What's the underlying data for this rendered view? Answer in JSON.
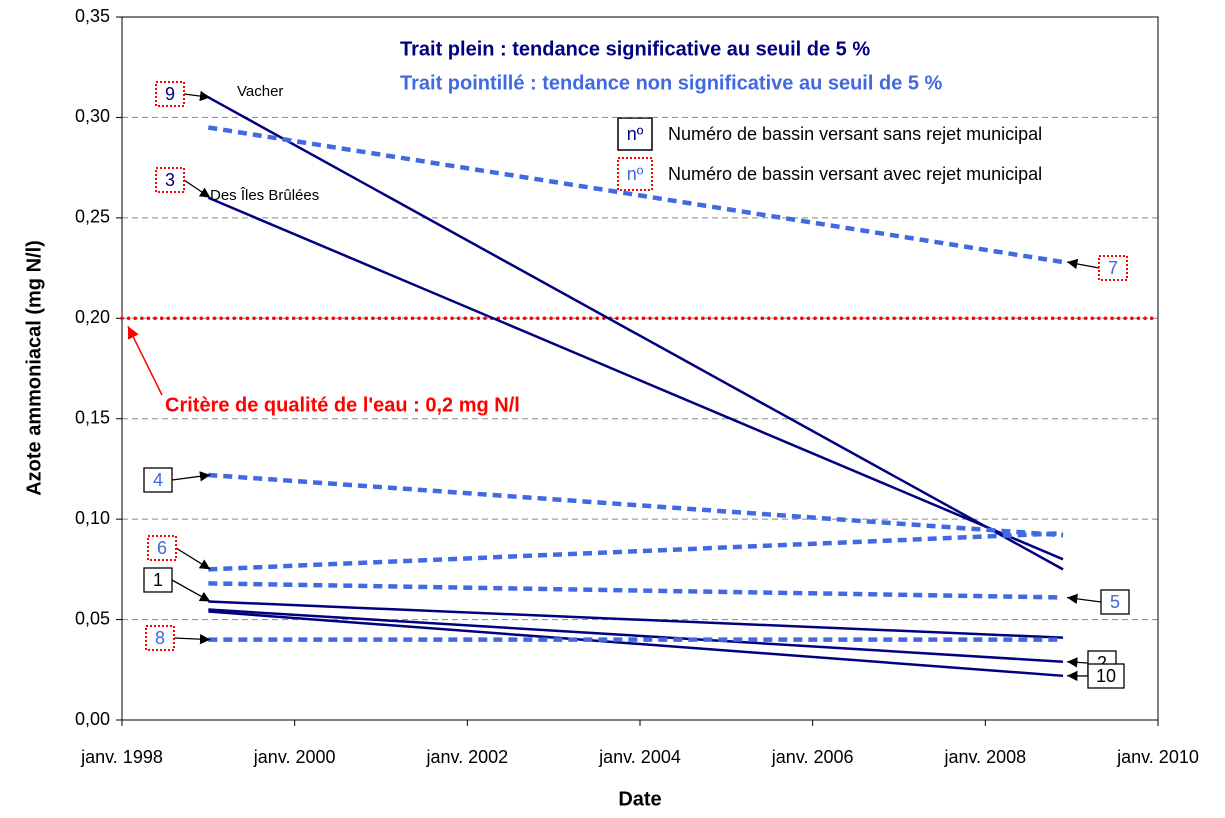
{
  "chart_data": {
    "type": "line",
    "y_label": "Azote ammoniacal (mg N/l)",
    "x_label": "Date",
    "xlim": [
      1998,
      2010
    ],
    "xticks": [
      {
        "value": 1998,
        "label": "janv. 1998"
      },
      {
        "value": 2000,
        "label": "janv. 2000"
      },
      {
        "value": 2002,
        "label": "janv. 2002"
      },
      {
        "value": 2004,
        "label": "janv. 2004"
      },
      {
        "value": 2006,
        "label": "janv. 2006"
      },
      {
        "value": 2008,
        "label": "janv. 2008"
      },
      {
        "value": 2010,
        "label": "janv. 2010"
      }
    ],
    "ylim": [
      0,
      0.35
    ],
    "yticks": [
      {
        "value": 0,
        "label": "0,00"
      },
      {
        "value": 0.05,
        "label": "0,05"
      },
      {
        "value": 0.1,
        "label": "0,10"
      },
      {
        "value": 0.15,
        "label": "0,15"
      },
      {
        "value": 0.2,
        "label": "0,20"
      },
      {
        "value": 0.25,
        "label": "0,25"
      },
      {
        "value": 0.3,
        "label": "0,30"
      },
      {
        "value": 0.35,
        "label": "0,35"
      }
    ],
    "grid": true,
    "legend": {
      "solid": "Trait plein :  tendance significative au seuil de 5 %",
      "dotted": "Trait pointillé :  tendance non significative au seuil de 5 %",
      "key_symbol": "nº",
      "key_without": "Numéro de bassin versant sans rejet municipal",
      "key_with": "Numéro de bassin versant avec rejet municipal"
    },
    "threshold": {
      "value": 0.2,
      "label": "Critère de qualité de l'eau : 0,2 mg N/l",
      "color": "#ff0000"
    },
    "series": [
      {
        "name": "9",
        "annotation": "Vacher",
        "color": "#000080",
        "style": "solid",
        "label_border": "dotted",
        "x": [
          1999,
          2008.9
        ],
        "values": [
          0.31,
          0.075
        ]
      },
      {
        "name": "3",
        "annotation": "Des Îles Brûlées",
        "color": "#000080",
        "style": "solid",
        "label_border": "dotted",
        "x": [
          1999,
          2008.9
        ],
        "values": [
          0.26,
          0.08
        ]
      },
      {
        "name": "1",
        "color": "#000080",
        "style": "solid",
        "label_border": "solid",
        "x": [
          1999,
          2008.9
        ],
        "values": [
          0.059,
          0.041
        ]
      },
      {
        "name": "2",
        "color": "#000080",
        "style": "solid",
        "label_border": "solid",
        "x": [
          1999,
          2008.9
        ],
        "values": [
          0.055,
          0.029
        ]
      },
      {
        "name": "10",
        "color": "#000080",
        "style": "solid",
        "label_border": "solid",
        "x": [
          1999,
          2008.9
        ],
        "values": [
          0.054,
          0.022
        ]
      },
      {
        "name": "7",
        "color": "#4169e1",
        "style": "dotted",
        "label_border": "dotted",
        "x": [
          1999,
          2008.9
        ],
        "values": [
          0.295,
          0.228
        ]
      },
      {
        "name": "4",
        "color": "#4169e1",
        "style": "dotted",
        "label_border": "solid",
        "x": [
          1999,
          2008.9
        ],
        "values": [
          0.122,
          0.092
        ]
      },
      {
        "name": "6",
        "color": "#4169e1",
        "style": "dotted",
        "label_border": "dotted",
        "x": [
          1999,
          2008.9
        ],
        "values": [
          0.075,
          0.093
        ]
      },
      {
        "name": "5",
        "color": "#4169e1",
        "style": "dotted",
        "label_border": "solid",
        "x": [
          1999,
          2008.9
        ],
        "values": [
          0.068,
          0.061
        ]
      },
      {
        "name": "8",
        "color": "#4169e1",
        "style": "dotted",
        "label_border": "dotted",
        "x": [
          1999,
          2008.9
        ],
        "values": [
          0.04,
          0.04
        ]
      }
    ]
  }
}
